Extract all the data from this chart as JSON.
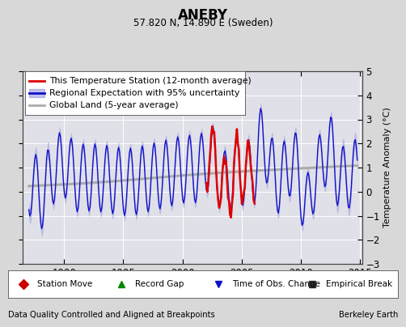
{
  "title": "ANEBY",
  "subtitle": "57.820 N, 14.890 E (Sweden)",
  "ylabel": "Temperature Anomaly (°C)",
  "xlabel_left": "Data Quality Controlled and Aligned at Breakpoints",
  "xlabel_right": "Berkeley Earth",
  "ylim": [
    -3,
    5
  ],
  "xlim": [
    1986.5,
    2015.2
  ],
  "xticks": [
    1990,
    1995,
    2000,
    2005,
    2010,
    2015
  ],
  "yticks": [
    -3,
    -2,
    -1,
    0,
    1,
    2,
    3,
    4,
    5
  ],
  "bg_color": "#d8d8d8",
  "plot_bg_color": "#e0e0e8",
  "grid_color": "#ffffff",
  "regional_color": "#1010cc",
  "regional_fill_color": "#9999dd",
  "station_color": "#dd0000",
  "global_color": "#aaaaaa",
  "legend_items": [
    {
      "label": "This Temperature Station (12-month average)",
      "color": "#dd0000",
      "lw": 2
    },
    {
      "label": "Regional Expectation with 95% uncertainty",
      "color": "#1010cc",
      "fill": "#9999dd",
      "lw": 2
    },
    {
      "label": "Global Land (5-year average)",
      "color": "#aaaaaa",
      "lw": 2
    }
  ],
  "bottom_legend_items": [
    {
      "label": "Station Move",
      "color": "#cc0000",
      "marker": "D"
    },
    {
      "label": "Record Gap",
      "color": "#008800",
      "marker": "^"
    },
    {
      "label": "Time of Obs. Change",
      "color": "#1010cc",
      "marker": "v"
    },
    {
      "label": "Empirical Break",
      "color": "#333333",
      "marker": "s"
    }
  ]
}
